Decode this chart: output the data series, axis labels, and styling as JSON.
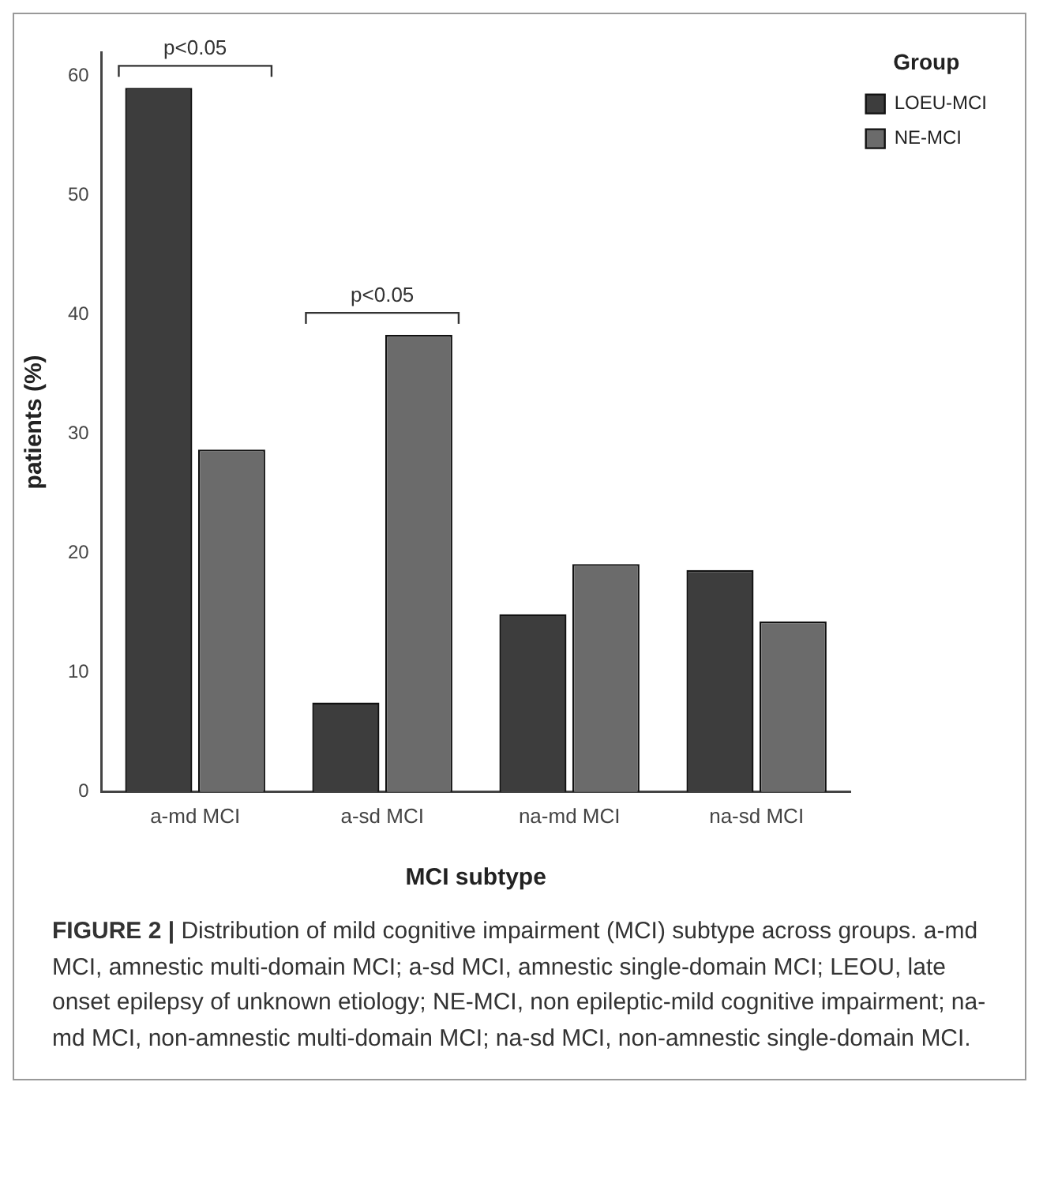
{
  "chart_data": {
    "type": "bar",
    "xlabel": "MCI subtype",
    "ylabel": "patients (%)",
    "legend_title": "Group",
    "categories": [
      "a-md MCI",
      "a-sd MCI",
      "na-md MCI",
      "na-sd MCI"
    ],
    "series": [
      {
        "name": "LOEU-MCI",
        "color": "#3d3d3d",
        "values": [
          59,
          7.5,
          14.9,
          18.6
        ]
      },
      {
        "name": "NE-MCI",
        "color": "#6b6b6b",
        "values": [
          28.7,
          38.3,
          19.1,
          14.3
        ]
      }
    ],
    "ylim": [
      0,
      62
    ],
    "yticks": [
      0,
      10,
      20,
      30,
      40,
      50,
      60
    ],
    "grid": false,
    "legend": "top right",
    "annotations": [
      "p<0.05",
      "p<0.05",
      "FIGURE 2 |",
      "Distribution of mild cognitive impairment (MCI) subtype across groups. a-md MCI, amnestic multi-domain MCI; a-sd MCI, amnestic single-domain MCI; LEOU, late onset epilepsy of unknown etiology; NE-MCI, non epileptic-mild cognitive impairment; na-md MCI, non-amnestic multi-domain MCI; na-sd MCI, non-amnestic single-domain MCI."
    ]
  }
}
